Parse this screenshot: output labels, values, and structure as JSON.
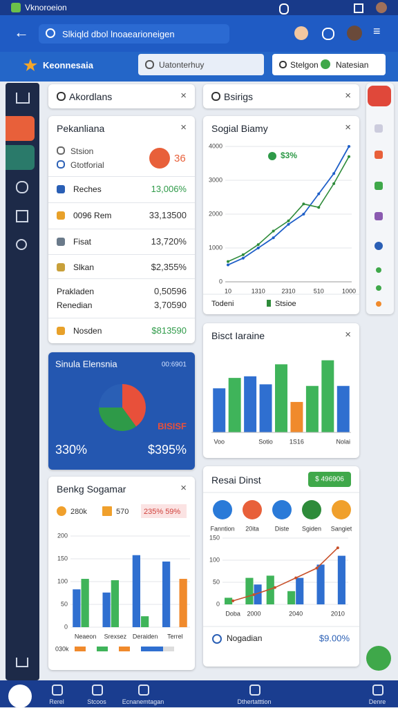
{
  "status_bar": {
    "app_name": "Vknoroeion"
  },
  "top_bar": {
    "search": "Slkiqld dbol lnoaearioneigen"
  },
  "sub_bar": {
    "brand": "Keonnesaia",
    "search": "Uatonterhuy",
    "button_left": "Stelgon",
    "button_right": "Natesian"
  },
  "cards": {
    "left_top": "Akordlans",
    "right_top": "Bsirigs"
  },
  "list_card": {
    "title": "Pekanliana",
    "header": [
      "Stsion",
      "Gtotforial"
    ],
    "badge": "36",
    "rows": [
      {
        "label": "Reches",
        "value": "13,006%"
      },
      {
        "label": "0096 Rem",
        "value": "33,13500"
      },
      {
        "label": "Fisat",
        "value": "13,720%"
      },
      {
        "label": "Slkan",
        "value": "$2,355%"
      },
      {
        "label": "Prakladen",
        "value": "0,50596"
      },
      {
        "label": "Renedian",
        "value": "3,70590"
      },
      {
        "label": "Nosden",
        "value": "$813590"
      }
    ]
  },
  "chart_data": [
    {
      "type": "line",
      "title": "Sogial Biamy",
      "annotation": "$3%",
      "categories": [
        "10",
        null,
        "1310",
        null,
        "2310",
        null,
        "510",
        null,
        "1000"
      ],
      "series": [
        {
          "name": "Todeni",
          "color": "#1f5fc8",
          "values": [
            500,
            700,
            1000,
            1300,
            1700,
            2000,
            2600,
            3200,
            4000
          ]
        },
        {
          "name": "Stsioe",
          "color": "#2e8b3a",
          "values": [
            600,
            800,
            1100,
            1500,
            1800,
            2300,
            2200,
            2900,
            3700
          ]
        }
      ],
      "ylim": [
        0,
        4000
      ],
      "yticks": [
        0,
        1000,
        2000,
        3000,
        4000
      ],
      "grid": true
    },
    {
      "type": "bar",
      "title": "Bisct Iaraine",
      "categories": [
        "Voo",
        null,
        null,
        "Sotio",
        null,
        "1S16",
        null,
        null,
        "Nolai"
      ],
      "values": [
        55,
        68,
        70,
        60,
        85,
        38,
        58,
        90,
        58
      ],
      "colors": [
        "#2f6fd0",
        "#3fb45a",
        "#2f6fd0",
        "#2f6fd0",
        "#3fb45a",
        "#f08a2c",
        "#3fb45a",
        "#3fb45a",
        "#2f6fd0"
      ],
      "ylim": [
        0,
        100
      ]
    },
    {
      "type": "pie",
      "title": "Sinula Elensnia",
      "subtitle": "00:6901",
      "annotation": "BISISF",
      "stats": [
        "330%",
        "$395%"
      ],
      "values": [
        40,
        35,
        25
      ],
      "colors": [
        "#e8503a",
        "#2e9a48",
        "#2a5fb5"
      ]
    },
    {
      "type": "grouped-bar",
      "title": "Benkg Sogamar",
      "stats": [
        "280k",
        "570",
        "235% 59%"
      ],
      "footer": "030k",
      "categories": [
        "Neaeon",
        "Srexsez",
        "Deraiden",
        "Terrel"
      ],
      "series": [
        {
          "color": "#2f6fd0",
          "values": [
            83,
            76,
            158,
            144
          ]
        },
        {
          "color": "#3fb45a",
          "values": [
            106,
            103,
            24,
            null
          ]
        },
        {
          "color": "#f08a2c",
          "values": [
            null,
            null,
            null,
            106
          ]
        }
      ],
      "ylim": [
        0,
        200
      ],
      "yticks": [
        0,
        50,
        100,
        150,
        200
      ],
      "grid": true
    },
    {
      "type": "combo",
      "title": "Resai Dinst",
      "badge": "$ 496906",
      "icon_labels": [
        "Fanntion",
        "20ita",
        "Diste",
        "Sgiden",
        "Sangiet"
      ],
      "footer_label": "Nogadian",
      "footer_value": "$9.00%",
      "categories": [
        "Doba",
        "2000",
        null,
        "2040",
        null,
        "2010"
      ],
      "series": [
        {
          "kind": "bar",
          "color": "#3fb45a",
          "values": [
            15,
            60,
            65,
            30,
            null,
            null
          ]
        },
        {
          "kind": "bar",
          "color": "#2f6fd0",
          "values": [
            null,
            45,
            null,
            60,
            90,
            110
          ]
        },
        {
          "kind": "line",
          "color": "#c8502a",
          "values": [
            8,
            22,
            38,
            60,
            82,
            128
          ]
        }
      ],
      "ylim": [
        0,
        150
      ],
      "yticks": [
        0,
        50,
        100,
        150
      ],
      "grid": true
    }
  ],
  "bottom_nav": [
    "Rerel",
    "Stcoos",
    "Ecnanemtagan",
    "Dthertatttion",
    "Denre"
  ]
}
